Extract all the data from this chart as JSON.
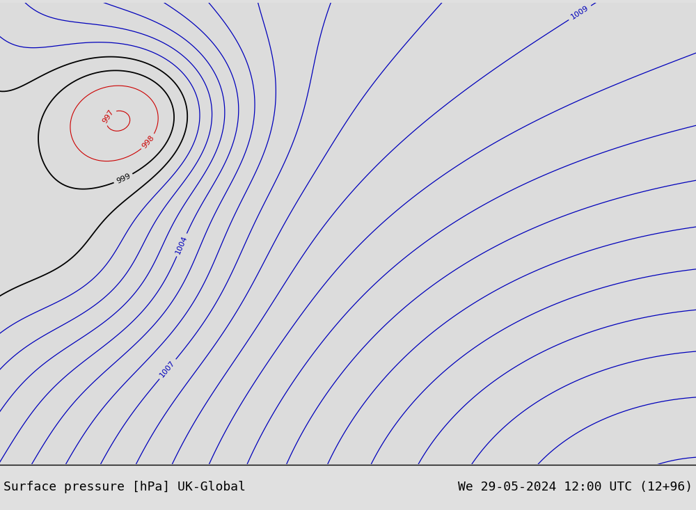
{
  "title_left": "Surface pressure [hPa] UK-Global",
  "title_right": "We 29-05-2024 12:00 UTC (12+96)",
  "background_color": "#e0e0e0",
  "sea_color": "#dcdcdc",
  "land_color": "#c8e6b0",
  "land_edge_color": "#a0a0a0",
  "text_color": "#000000",
  "blue_contour_color": "#0000bb",
  "red_contour_color": "#cc0000",
  "black_contour_color": "#000000",
  "title_fontsize": 13,
  "contour_fontsize": 8,
  "fig_width": 10.0,
  "fig_height": 7.33,
  "lon_min": -13.5,
  "lon_max": 12.0,
  "lat_min": 47.0,
  "lat_max": 63.5,
  "low_lon": -8.5,
  "low_lat": 59.5,
  "low2_lon": -10.0,
  "low2_lat": 54.5,
  "deep_lon": -40.0,
  "deep_lat": 55.0,
  "high_lon": 10.0,
  "high_lat": 45.0,
  "base_pressure": 1006.0
}
